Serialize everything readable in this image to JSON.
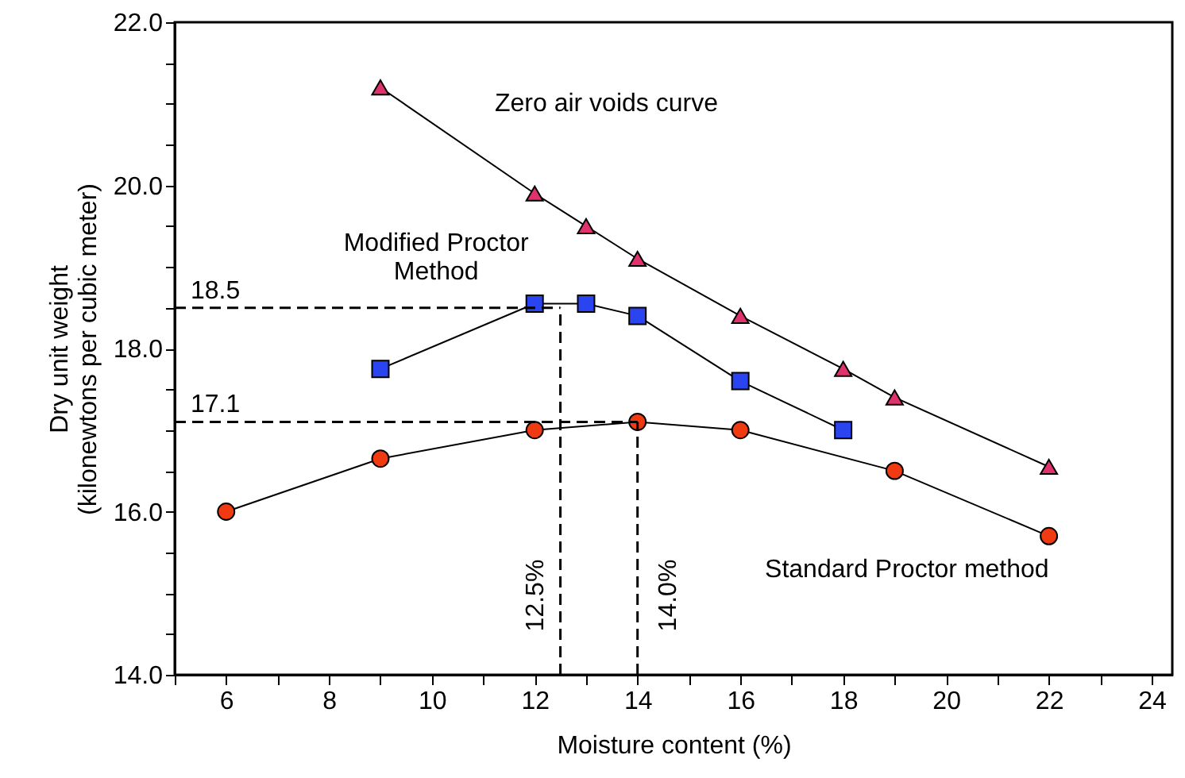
{
  "chart_data": {
    "type": "line",
    "xlabel": "Moisture content (%)",
    "ylabel": "Dry unit weight\n(kilonewtons per cubic meter)",
    "xlim": [
      5,
      24.4
    ],
    "ylim": [
      14,
      22
    ],
    "xticks": [
      {
        "value": 5,
        "label": null
      },
      6,
      {
        "value": 7,
        "label": null
      },
      8,
      {
        "value": 9,
        "label": null
      },
      10,
      {
        "value": 11,
        "label": null
      },
      12,
      {
        "value": 13,
        "label": null
      },
      14,
      {
        "value": 15,
        "label": null
      },
      16,
      {
        "value": 17,
        "label": null
      },
      18,
      {
        "value": 19,
        "label": null
      },
      20,
      {
        "value": 21,
        "label": null
      },
      22,
      {
        "value": 23,
        "label": null
      },
      24
    ],
    "yticks": [
      {
        "value": 14,
        "label": "14.0"
      },
      {
        "value": 14.5,
        "label": null
      },
      {
        "value": 15,
        "label": null
      },
      {
        "value": 15.5,
        "label": null
      },
      {
        "value": 16,
        "label": "16.0"
      },
      {
        "value": 16.5,
        "label": null
      },
      {
        "value": 17,
        "label": null
      },
      {
        "value": 17.5,
        "label": null
      },
      {
        "value": 18,
        "label": "18.0"
      },
      {
        "value": 18.5,
        "label": null
      },
      {
        "value": 19,
        "label": null
      },
      {
        "value": 19.5,
        "label": null
      },
      {
        "value": 20,
        "label": "20.0"
      },
      {
        "value": 20.5,
        "label": null
      },
      {
        "value": 21,
        "label": null
      },
      {
        "value": 21.5,
        "label": null
      },
      {
        "value": 22,
        "label": "22.0"
      }
    ],
    "grid": false,
    "series": [
      {
        "name": "Zero air voids curve",
        "color": "#e0336e",
        "marker": "triangle",
        "x": [
          9,
          12,
          13,
          14,
          16,
          18,
          19,
          22
        ],
        "values": [
          21.2,
          19.9,
          19.5,
          19.1,
          18.4,
          17.75,
          17.4,
          16.55
        ]
      },
      {
        "name": "Modified Proctor\nMethod",
        "color": "#2a45f0",
        "marker": "square",
        "x": [
          9,
          12,
          13,
          14,
          16,
          18
        ],
        "values": [
          17.75,
          18.55,
          18.55,
          18.4,
          17.6,
          17.0
        ]
      },
      {
        "name": "Standard Proctor method",
        "color": "#f03a12",
        "marker": "circle",
        "x": [
          6,
          9,
          12,
          14,
          16,
          19,
          22
        ],
        "values": [
          16.0,
          16.65,
          17.0,
          17.1,
          17.0,
          16.5,
          15.7
        ]
      }
    ],
    "ref_lines": [
      {
        "axis": "y",
        "value": 18.5,
        "label": "18.5",
        "line_style": "dashed"
      },
      {
        "axis": "y",
        "value": 17.1,
        "label": "17.1",
        "line_style": "dashed"
      },
      {
        "axis": "x",
        "value": 12.5,
        "label": "12.5%",
        "line_style": "dashed"
      },
      {
        "axis": "x",
        "value": 14.0,
        "label": "14.0%",
        "line_style": "dashed"
      }
    ]
  }
}
